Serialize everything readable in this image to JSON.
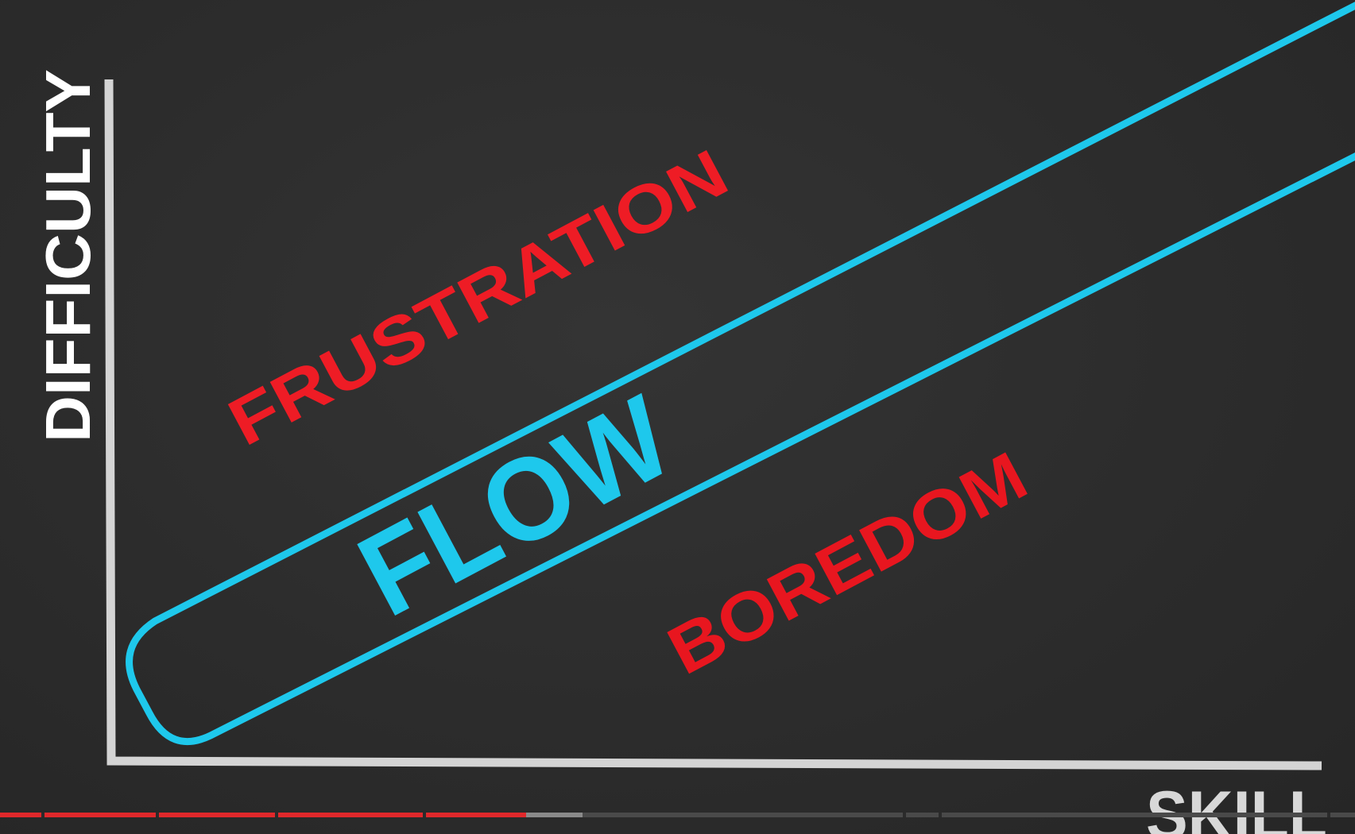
{
  "diagram": {
    "y_axis_label": "DIFFICULTY",
    "x_axis_label": "SKILL",
    "zones": {
      "upper": "FRUSTRATION",
      "middle": "FLOW",
      "lower": "BOREDOM"
    }
  },
  "colors": {
    "background": "#2c2c2c",
    "axis": "#d4d4d4",
    "flow_channel": "#1ec8ec",
    "zone_warning": "#ee1c25",
    "axis_label": "#ffffff",
    "progress_played": "#e0282b",
    "progress_buffered": "#8a8a8a",
    "progress_remaining": "#4a4a4a"
  },
  "video_progress": {
    "played_fraction": 0.388,
    "buffered_fraction": 0.43
  }
}
